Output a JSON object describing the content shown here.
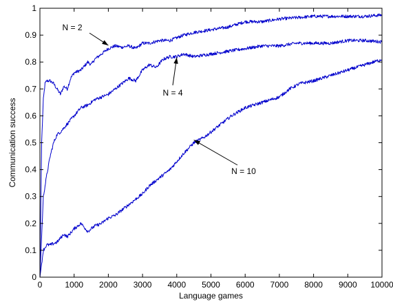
{
  "chart_data": {
    "type": "line",
    "xlabel": "Language games",
    "ylabel": "Communication success",
    "xlim": [
      0,
      10000
    ],
    "ylim": [
      0,
      1
    ],
    "xticks": [
      0,
      1000,
      2000,
      3000,
      4000,
      5000,
      6000,
      7000,
      8000,
      9000,
      10000
    ],
    "yticks": [
      0,
      0.1,
      0.2,
      0.3,
      0.4,
      0.5,
      0.6,
      0.7,
      0.8,
      0.9,
      1
    ],
    "xtick_labels": [
      "0",
      "1000",
      "2000",
      "3000",
      "4000",
      "5000",
      "6000",
      "7000",
      "8000",
      "9000",
      "10000"
    ],
    "ytick_labels": [
      "0",
      "0.1",
      "0.2",
      "0.3",
      "0.4",
      "0.5",
      "0.6",
      "0.7",
      "0.8",
      "0.9",
      "1"
    ],
    "grid": false,
    "line_color": "#0000cc",
    "series": [
      {
        "x": [
          0,
          50,
          100,
          150,
          200,
          300,
          400,
          500,
          600,
          700,
          800,
          900,
          1000,
          1200,
          1400,
          1500,
          1600,
          1700,
          1800,
          2000,
          2200,
          2400,
          2600,
          2800,
          3000,
          3200,
          3500,
          3800,
          4000,
          4200,
          4500,
          5000,
          5500,
          6000,
          6500,
          7000,
          7500,
          8000,
          8500,
          9000,
          9500,
          10000
        ],
        "y": [
          0.0,
          0.5,
          0.66,
          0.72,
          0.73,
          0.73,
          0.72,
          0.7,
          0.68,
          0.71,
          0.7,
          0.74,
          0.76,
          0.77,
          0.8,
          0.79,
          0.81,
          0.82,
          0.83,
          0.85,
          0.86,
          0.855,
          0.86,
          0.85,
          0.87,
          0.87,
          0.88,
          0.88,
          0.89,
          0.9,
          0.91,
          0.92,
          0.93,
          0.95,
          0.95,
          0.96,
          0.965,
          0.97,
          0.97,
          0.97,
          0.97,
          0.975
        ]
      },
      {
        "x": [
          0,
          100,
          200,
          300,
          400,
          500,
          600,
          800,
          1000,
          1200,
          1400,
          1600,
          1800,
          2000,
          2200,
          2400,
          2600,
          2800,
          3000,
          3200,
          3400,
          3600,
          3800,
          4000,
          4200,
          4500,
          5000,
          5500,
          6000,
          6500,
          7000,
          7500,
          8000,
          8500,
          9000,
          9500,
          10000
        ],
        "y": [
          0.0,
          0.3,
          0.38,
          0.45,
          0.5,
          0.53,
          0.54,
          0.57,
          0.6,
          0.63,
          0.64,
          0.66,
          0.67,
          0.68,
          0.7,
          0.72,
          0.74,
          0.73,
          0.77,
          0.79,
          0.78,
          0.81,
          0.82,
          0.82,
          0.83,
          0.82,
          0.83,
          0.84,
          0.85,
          0.86,
          0.86,
          0.87,
          0.87,
          0.87,
          0.88,
          0.88,
          0.875
        ]
      },
      {
        "x": [
          0,
          50,
          100,
          200,
          300,
          500,
          700,
          800,
          1000,
          1200,
          1400,
          1500,
          1600,
          1800,
          2000,
          2200,
          2500,
          2800,
          3000,
          3200,
          3500,
          3800,
          4000,
          4200,
          4500,
          4800,
          5000,
          5300,
          5600,
          6000,
          6500,
          7000,
          7300,
          7600,
          8000,
          8500,
          9000,
          9500,
          10000
        ],
        "y": [
          0.0,
          0.05,
          0.1,
          0.12,
          0.12,
          0.13,
          0.16,
          0.15,
          0.18,
          0.2,
          0.17,
          0.18,
          0.19,
          0.2,
          0.22,
          0.23,
          0.26,
          0.29,
          0.31,
          0.34,
          0.37,
          0.4,
          0.43,
          0.46,
          0.5,
          0.52,
          0.54,
          0.57,
          0.6,
          0.63,
          0.65,
          0.67,
          0.7,
          0.72,
          0.73,
          0.75,
          0.77,
          0.79,
          0.81
        ]
      }
    ],
    "annotations": [
      {
        "text": "N = 2",
        "x": 2000,
        "y": 0.862
      },
      {
        "text": "N = 4",
        "x": 4000,
        "y": 0.817
      },
      {
        "text": "N = 10",
        "x": 4500,
        "y": 0.51
      }
    ]
  }
}
